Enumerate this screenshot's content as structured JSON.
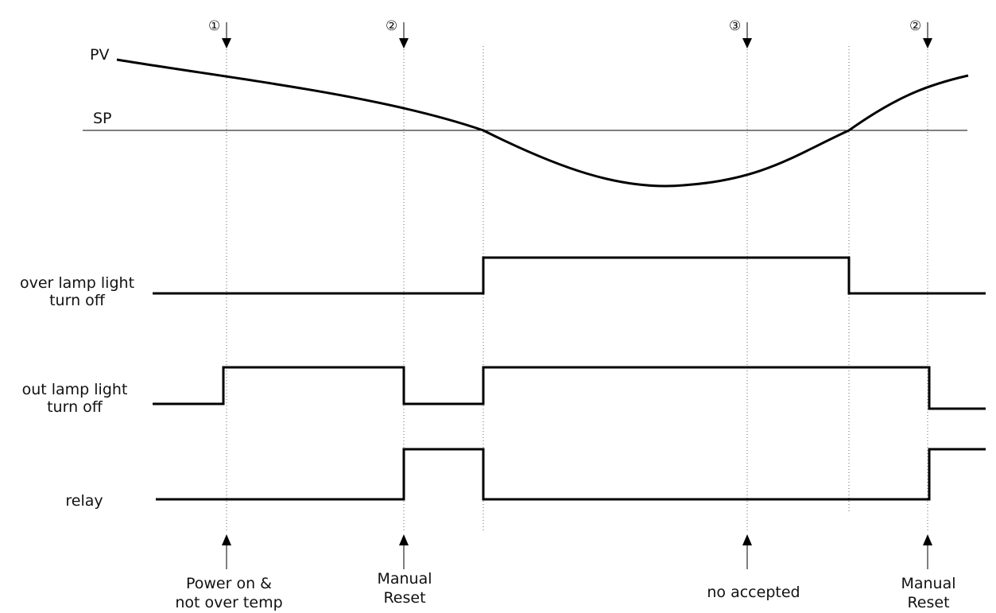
{
  "curve_labels": {
    "pv": "PV",
    "sp": "SP"
  },
  "signals": [
    {
      "line1": "over lamp light",
      "line2": "turn off"
    },
    {
      "line1": "out lamp light",
      "line2": "turn off"
    },
    {
      "line1": "relay",
      "line2": ""
    }
  ],
  "top_markers": [
    "①",
    "②",
    "③",
    "②"
  ],
  "events": [
    {
      "line1": "Power on &",
      "line2": "not over temp"
    },
    {
      "line1": "Manual",
      "line2": "Reset"
    },
    {
      "line1": "no accepted",
      "line2": ""
    },
    {
      "line1": "Manual",
      "line2": "Reset"
    }
  ]
}
